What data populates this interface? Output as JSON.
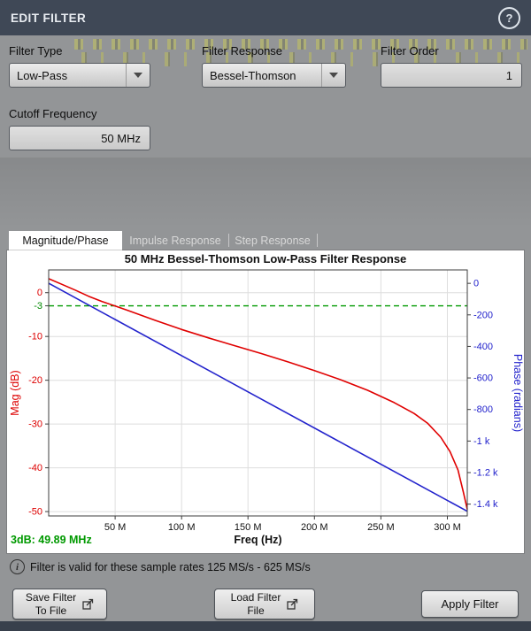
{
  "window": {
    "title": "EDIT FILTER",
    "help_icon": "?"
  },
  "fields": {
    "filter_type": {
      "label": "Filter Type",
      "value": "Low-Pass"
    },
    "filter_response": {
      "label": "Filter Response",
      "value": "Bessel-Thomson"
    },
    "filter_order": {
      "label": "Filter Order",
      "value": "1"
    },
    "cutoff_frequency": {
      "label": "Cutoff Frequency",
      "value": "50 MHz"
    }
  },
  "tabs": [
    {
      "label": "Magnitude/Phase",
      "active": true
    },
    {
      "label": "Impulse Response",
      "active": false
    },
    {
      "label": "Step Response",
      "active": false
    }
  ],
  "chart_data": {
    "type": "line",
    "title": "50 MHz Bessel-Thomson Low-Pass Filter Response",
    "xlabel": "Freq (Hz)",
    "x_range_mhz": [
      0,
      315
    ],
    "x_ticks": [
      {
        "value": 50,
        "label": "50 M"
      },
      {
        "value": 100,
        "label": "100 M"
      },
      {
        "value": 150,
        "label": "150 M"
      },
      {
        "value": 200,
        "label": "200 M"
      },
      {
        "value": 250,
        "label": "250 M"
      },
      {
        "value": 300,
        "label": "300 M"
      }
    ],
    "left_axis": {
      "label": "Mag (dB)",
      "color": "#dd0000",
      "range": [
        5.2,
        -51
      ],
      "ticks": [
        {
          "value": 0,
          "label": "0"
        },
        {
          "value": -3,
          "label": "-3",
          "color": "#008800"
        },
        {
          "value": -10,
          "label": "-10"
        },
        {
          "value": -20,
          "label": "-20"
        },
        {
          "value": -30,
          "label": "-30"
        },
        {
          "value": -40,
          "label": "-40"
        },
        {
          "value": -50,
          "label": "-50"
        }
      ]
    },
    "right_axis": {
      "label": "Phase (radians)",
      "color": "#2222cc",
      "range": [
        85,
        -1475
      ],
      "ticks": [
        {
          "value": 0,
          "label": "0"
        },
        {
          "value": -200,
          "label": "-200"
        },
        {
          "value": -400,
          "label": "-400"
        },
        {
          "value": -600,
          "label": "-600"
        },
        {
          "value": -800,
          "label": "-800"
        },
        {
          "value": -1000,
          "label": "-1 k"
        },
        {
          "value": -1200,
          "label": "-1.2 k"
        },
        {
          "value": -1400,
          "label": "-1.4 k"
        }
      ]
    },
    "grid_mag": [
      0,
      -10,
      -20,
      -30,
      -40,
      -50
    ],
    "threshold_line": {
      "value_db": -3,
      "color": "#009900",
      "style": "dashed"
    },
    "annotation": "3dB: 49.89 MHz",
    "annotation_color": "#009900",
    "series": [
      {
        "name": "magnitude",
        "axis": "left",
        "color": "#e00000",
        "x_mhz": [
          0,
          10,
          20,
          30,
          40,
          50,
          60,
          80,
          100,
          120,
          140,
          160,
          180,
          200,
          220,
          240,
          260,
          275,
          285,
          295,
          302,
          308,
          312,
          315
        ],
        "y": [
          3.2,
          1.9,
          0.6,
          -0.8,
          -2.0,
          -3.05,
          -4.1,
          -6.3,
          -8.4,
          -10.3,
          -12.1,
          -13.9,
          -15.8,
          -17.8,
          -19.9,
          -22.3,
          -25.1,
          -27.6,
          -29.8,
          -33.0,
          -36.3,
          -40.5,
          -45.5,
          -49.5
        ]
      },
      {
        "name": "phase",
        "axis": "right",
        "color": "#2222cc",
        "x_mhz": [
          0,
          315
        ],
        "y": [
          0,
          -1445
        ]
      }
    ]
  },
  "status": {
    "info_icon": "i",
    "info_text": "Filter is valid for these sample rates 125 MS/s - 625 MS/s"
  },
  "buttons": {
    "save": {
      "line1": "Save Filter",
      "line2": "To File"
    },
    "load": {
      "line1": "Load Filter",
      "line2": "File"
    },
    "apply": "Apply Filter"
  }
}
